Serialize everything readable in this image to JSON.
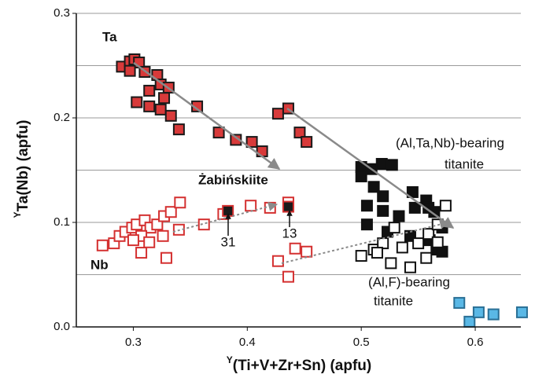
{
  "chart_data": {
    "type": "scatter",
    "x_label_sup": "Y",
    "x_label": "(Ti+V+Zr+Sn) (apfu)",
    "y_label_sup": "Y",
    "y_label": "Ta(Nb) (apfu)",
    "xlim": [
      0.25,
      0.64
    ],
    "xticks": [
      0.3,
      0.4,
      0.5,
      0.6
    ],
    "ylim": [
      0,
      0.3
    ],
    "yticks": [
      {
        "value": 0,
        "label": "0.0"
      },
      0.1,
      0.2,
      0.3
    ],
    "grid_lines": [
      0.05,
      0.1,
      0.15,
      0.2,
      0.25,
      0.3
    ],
    "series": [
      {
        "color": "#d83a3a",
        "edge": "#1a1a1a",
        "filled": true,
        "x": [
          0.29,
          0.297,
          0.301,
          0.305,
          0.297,
          0.31,
          0.321,
          0.324,
          0.331,
          0.314,
          0.327,
          0.303,
          0.314,
          0.324,
          0.333,
          0.34,
          0.356,
          0.375,
          0.39,
          0.404,
          0.413,
          0.427,
          0.436,
          0.446,
          0.452
        ],
        "values": [
          0.249,
          0.254,
          0.256,
          0.253,
          0.245,
          0.244,
          0.241,
          0.232,
          0.229,
          0.226,
          0.219,
          0.215,
          0.211,
          0.208,
          0.202,
          0.189,
          0.211,
          0.186,
          0.179,
          0.177,
          0.168,
          0.204,
          0.209,
          0.186,
          0.177
        ]
      },
      {
        "color": "#111111",
        "edge": "#111111",
        "filled": true,
        "x": [
          0.5,
          0.509,
          0.518,
          0.527,
          0.5,
          0.511,
          0.519,
          0.545,
          0.557,
          0.505,
          0.519,
          0.533,
          0.547,
          0.559,
          0.564,
          0.505,
          0.571,
          0.543,
          0.56,
          0.566,
          0.571,
          0.523
        ],
        "values": [
          0.153,
          0.151,
          0.156,
          0.155,
          0.144,
          0.134,
          0.125,
          0.129,
          0.121,
          0.116,
          0.111,
          0.106,
          0.114,
          0.114,
          0.11,
          0.098,
          0.095,
          0.087,
          0.083,
          0.074,
          0.072,
          0.091
        ]
      },
      {
        "color": "#d43030",
        "edge": "#d43030",
        "filled": false,
        "x": [
          0.273,
          0.283,
          0.288,
          0.293,
          0.299,
          0.303,
          0.31,
          0.315,
          0.321,
          0.327,
          0.333,
          0.341,
          0.307,
          0.3,
          0.314,
          0.326,
          0.34,
          0.329,
          0.307,
          0.362,
          0.379,
          0.403,
          0.42,
          0.436,
          0.427,
          0.436,
          0.442,
          0.452
        ],
        "values": [
          0.078,
          0.08,
          0.087,
          0.091,
          0.095,
          0.098,
          0.102,
          0.095,
          0.098,
          0.106,
          0.11,
          0.119,
          0.087,
          0.083,
          0.081,
          0.087,
          0.093,
          0.066,
          0.071,
          0.098,
          0.108,
          0.116,
          0.114,
          0.119,
          0.063,
          0.048,
          0.075,
          0.072
        ]
      },
      {
        "color": "#111111",
        "edge": "#111111",
        "filled": false,
        "x": [
          0.5,
          0.511,
          0.519,
          0.529,
          0.536,
          0.55,
          0.559,
          0.567,
          0.574,
          0.557,
          0.526,
          0.543,
          0.514,
          0.567
        ],
        "values": [
          0.068,
          0.074,
          0.08,
          0.095,
          0.076,
          0.08,
          0.089,
          0.081,
          0.116,
          0.066,
          0.061,
          0.057,
          0.071,
          0.098
        ]
      },
      {
        "color": "#1a1a1a",
        "edge": "#d43030",
        "filled": true,
        "x": [
          0.383,
          0.436
        ],
        "values": [
          0.111,
          0.115
        ]
      },
      {
        "color": "#5ab8e6",
        "edge": "#2a6f95",
        "filled": true,
        "x": [
          0.586,
          0.595,
          0.603,
          0.616,
          0.641
        ],
        "values": [
          0.023,
          0.005,
          0.014,
          0.012,
          0.014
        ]
      }
    ],
    "annotations": [
      "Ta",
      "Nb",
      "Żabińskiite",
      "(Al,Ta,Nb)-bearing",
      "titanite",
      "(Al,F)-bearing",
      "titanite",
      "31",
      "13"
    ]
  }
}
